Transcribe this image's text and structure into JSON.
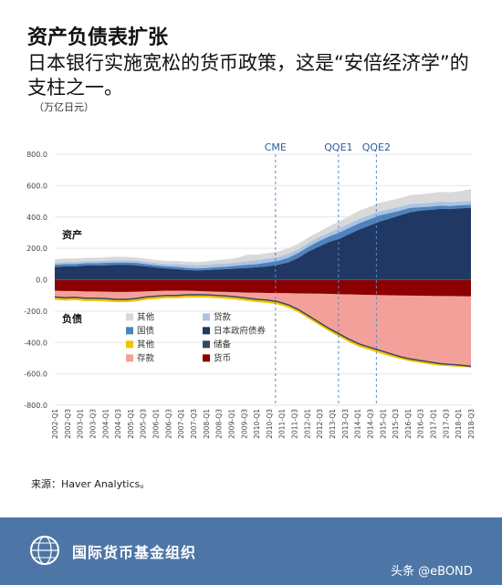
{
  "header": {
    "title": "资产负债表扩张",
    "subtitle": "日本银行实施宽松的货币政策，这是“安倍经济学”的支柱之一。",
    "unit": "（万亿日元）"
  },
  "source": "来源：Haver Analytics。",
  "footer": {
    "org": "国际货币基金组织",
    "watermark": "头条 @eBOND"
  },
  "colors": {
    "other_asset": "#d9d9d9",
    "loans": "#a9c4e4",
    "govt_bonds": "#4f81bd",
    "jgb": "#1f3864",
    "other_liab": "#f2c200",
    "reserves": "#34495e",
    "deposits": "#f4a09a",
    "currency": "#8b0000",
    "policy_line": "#5b8bd0"
  },
  "chart_data": {
    "type": "area",
    "ylim": [
      -800,
      800
    ],
    "y_ticks": [
      "800.0",
      "600.0",
      "400.0",
      "200.0",
      "0.0",
      "-200.0",
      "-400.0",
      "-600.0",
      "-800.0"
    ],
    "y_tick_values": [
      800,
      600,
      400,
      200,
      0,
      -200,
      -400,
      -600,
      -800
    ],
    "x_tick_labels": [
      "2002-Q1",
      "2002-Q3",
      "2003-Q1",
      "2003-Q3",
      "2004-Q1",
      "2004-Q3",
      "2005-Q1",
      "2005-Q3",
      "2006-Q1",
      "2006-Q3",
      "2007-Q1",
      "2007-Q3",
      "2008-Q1",
      "2008-Q3",
      "2009-Q1",
      "2009-Q3",
      "2010-Q1",
      "2010-Q3",
      "2011-Q1",
      "2011-Q3",
      "2012-Q1",
      "2012-Q3",
      "2013-Q1",
      "2013-Q3",
      "2014-Q1",
      "2014-Q3",
      "2015-Q1",
      "2015-Q3",
      "2016-Q1",
      "2016-Q3",
      "2017-Q1",
      "2017-Q3",
      "2018-Q1",
      "2018-Q3"
    ],
    "side_labels": {
      "assets": "资产",
      "liabilities": "负债"
    },
    "policy_events": [
      {
        "label": "CME",
        "x": "2010-Q4"
      },
      {
        "label": "QQE1",
        "x": "2013-Q2"
      },
      {
        "label": "QQE2",
        "x": "2014-Q4"
      }
    ],
    "legend": [
      {
        "name": "其他",
        "color": "#d9d9d9"
      },
      {
        "name": "贷款",
        "color": "#a9c4e4"
      },
      {
        "name": "国债",
        "color": "#4f81bd"
      },
      {
        "name": "日本政府债券",
        "color": "#1f3864"
      },
      {
        "name": "其他",
        "color": "#f2c200"
      },
      {
        "name": "储备",
        "color": "#34495e"
      },
      {
        "name": "存款",
        "color": "#f4a09a"
      },
      {
        "name": "货币",
        "color": "#8b0000"
      }
    ],
    "series_assets_cumulative": {
      "jgb": [
        80,
        85,
        85,
        90,
        90,
        92,
        95,
        95,
        92,
        85,
        78,
        72,
        68,
        62,
        58,
        62,
        65,
        68,
        72,
        75,
        80,
        85,
        95,
        110,
        140,
        180,
        210,
        240,
        260,
        290,
        320,
        345,
        370,
        390,
        410,
        430,
        440,
        445,
        452,
        450,
        455,
        458
      ],
      "govt_bonds": [
        95,
        100,
        100,
        105,
        105,
        108,
        110,
        110,
        108,
        100,
        92,
        86,
        82,
        76,
        72,
        75,
        80,
        84,
        90,
        95,
        100,
        110,
        120,
        140,
        170,
        210,
        245,
        275,
        300,
        330,
        360,
        385,
        410,
        425,
        440,
        458,
        462,
        466,
        472,
        470,
        475,
        478
      ],
      "loans": [
        108,
        113,
        113,
        118,
        118,
        121,
        124,
        124,
        122,
        114,
        106,
        100,
        100,
        95,
        92,
        96,
        100,
        104,
        110,
        118,
        125,
        135,
        145,
        165,
        195,
        235,
        270,
        300,
        328,
        358,
        388,
        412,
        436,
        450,
        465,
        482,
        486,
        490,
        497,
        495,
        499,
        502
      ],
      "other_asset": [
        130,
        135,
        135,
        140,
        140,
        143,
        146,
        146,
        142,
        134,
        126,
        120,
        120,
        115,
        112,
        118,
        125,
        130,
        140,
        160,
        160,
        170,
        180,
        200,
        230,
        270,
        305,
        340,
        370,
        405,
        440,
        465,
        490,
        505,
        520,
        540,
        545,
        552,
        560,
        558,
        565,
        578
      ]
    },
    "series_liab_cumulative": {
      "currency": [
        -70,
        -72,
        -72,
        -75,
        -75,
        -76,
        -78,
        -78,
        -76,
        -74,
        -72,
        -70,
        -70,
        -70,
        -72,
        -74,
        -76,
        -78,
        -80,
        -82,
        -83,
        -84,
        -85,
        -86,
        -87,
        -88,
        -89,
        -90,
        -92,
        -93,
        -95,
        -97,
        -98,
        -99,
        -100,
        -101,
        -102,
        -103,
        -104,
        -104,
        -105,
        -106
      ],
      "deposits": [
        -110,
        -115,
        -112,
        -118,
        -118,
        -120,
        -125,
        -125,
        -120,
        -110,
        -105,
        -100,
        -100,
        -96,
        -95,
        -96,
        -100,
        -104,
        -110,
        -118,
        -125,
        -130,
        -140,
        -160,
        -190,
        -230,
        -270,
        -310,
        -345,
        -380,
        -410,
        -430,
        -450,
        -470,
        -490,
        -505,
        -515,
        -525,
        -535,
        -540,
        -545,
        -552
      ],
      "other_liab": [
        -128,
        -133,
        -130,
        -136,
        -136,
        -138,
        -143,
        -143,
        -138,
        -128,
        -123,
        -118,
        -118,
        -114,
        -113,
        -114,
        -118,
        -122,
        -128,
        -136,
        -143,
        -148,
        -158,
        -178,
        -208,
        -248,
        -288,
        -328,
        -363,
        -398,
        -428,
        -448,
        -468,
        -488,
        -505,
        -520,
        -530,
        -540,
        -548,
        -552,
        -556,
        -560
      ]
    }
  }
}
